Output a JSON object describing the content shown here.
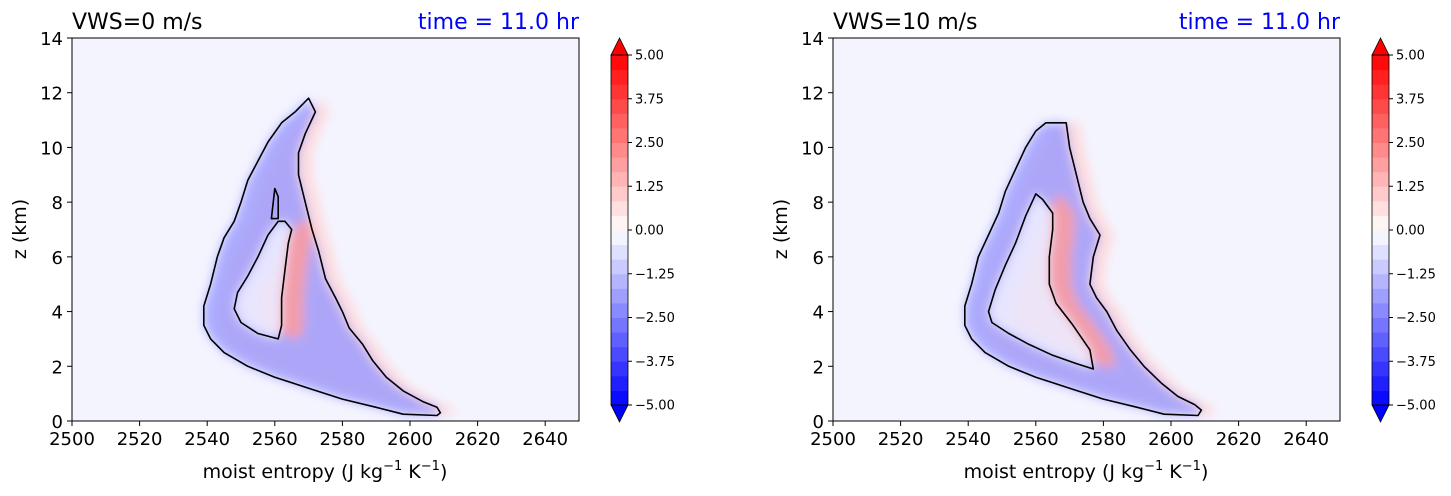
{
  "chart_data": [
    {
      "type": "heatmap",
      "title": "VWS=0 m/s",
      "title_right": "time = 11.0 hr",
      "title_right_color": "#0000ff",
      "xlabel": "moist entropy (J kg",
      "xlabel_sup1": "−1",
      "xlabel_mid": " K",
      "xlabel_sup2": "−1",
      "xlabel_end": ")",
      "ylabel": "z (km)",
      "xlim": [
        2500,
        2650
      ],
      "ylim": [
        0,
        14
      ],
      "xticks": [
        "2500",
        "2520",
        "2540",
        "2560",
        "2580",
        "2600",
        "2620",
        "2640"
      ],
      "yticks": [
        "0",
        "2",
        "4",
        "6",
        "8",
        "10",
        "12",
        "14"
      ],
      "colorbar": {
        "ticks": [
          "5.00",
          "3.75",
          "2.50",
          "1.25",
          "0.00",
          "−1.25",
          "−2.50",
          "−3.75",
          "−5.00"
        ],
        "range": [
          -5,
          5
        ],
        "cmap": "bwr",
        "extend": "both"
      },
      "contours": {
        "outer_left": [
          [
            2608,
            0.2
          ],
          [
            2598,
            0.25
          ],
          [
            2590,
            0.5
          ],
          [
            2580,
            0.8
          ],
          [
            2570,
            1.2
          ],
          [
            2560,
            1.6
          ],
          [
            2552,
            2.0
          ],
          [
            2545,
            2.5
          ],
          [
            2541,
            3.0
          ],
          [
            2539,
            3.5
          ],
          [
            2539,
            4.2
          ],
          [
            2541,
            5.0
          ],
          [
            2543,
            6.0
          ],
          [
            2545,
            6.7
          ],
          [
            2548,
            7.3
          ],
          [
            2550,
            8.0
          ],
          [
            2552,
            8.8
          ],
          [
            2555,
            9.5
          ],
          [
            2558,
            10.2
          ],
          [
            2562,
            10.9
          ],
          [
            2566,
            11.3
          ],
          [
            2570,
            11.8
          ],
          [
            2572,
            11.3
          ],
          [
            2569,
            10.5
          ],
          [
            2567,
            9.8
          ],
          [
            2567,
            9.0
          ],
          [
            2569,
            8.0
          ],
          [
            2571,
            7.0
          ],
          [
            2573,
            6.2
          ],
          [
            2575,
            5.2
          ],
          [
            2578,
            4.5
          ],
          [
            2580,
            4.0
          ],
          [
            2582,
            3.4
          ],
          [
            2586,
            2.8
          ],
          [
            2589,
            2.2
          ],
          [
            2593,
            1.6
          ],
          [
            2598,
            1.1
          ],
          [
            2604,
            0.7
          ],
          [
            2608,
            0.5
          ],
          [
            2609,
            0.3
          ],
          [
            2608,
            0.2
          ]
        ],
        "inner": [
          [
            2561,
            7.3
          ],
          [
            2558,
            6.8
          ],
          [
            2555,
            6.0
          ],
          [
            2552,
            5.3
          ],
          [
            2549,
            4.7
          ],
          [
            2548,
            4.1
          ],
          [
            2550,
            3.6
          ],
          [
            2555,
            3.2
          ],
          [
            2561,
            3.0
          ],
          [
            2562,
            3.5
          ],
          [
            2562,
            4.5
          ],
          [
            2563,
            5.5
          ],
          [
            2564,
            6.5
          ],
          [
            2565,
            7.0
          ],
          [
            2563,
            7.3
          ],
          [
            2561,
            7.3
          ]
        ],
        "spike": [
          [
            2559,
            7.4
          ],
          [
            2560,
            8.5
          ],
          [
            2561,
            8.2
          ],
          [
            2561,
            7.4
          ],
          [
            2559,
            7.4
          ]
        ]
      }
    },
    {
      "type": "heatmap",
      "title": "VWS=10 m/s",
      "title_right": "time = 11.0 hr",
      "title_right_color": "#0000ff",
      "xlabel": "moist entropy (J kg",
      "xlabel_sup1": "−1",
      "xlabel_mid": " K",
      "xlabel_sup2": "−1",
      "xlabel_end": ")",
      "ylabel": "z (km)",
      "xlim": [
        2500,
        2650
      ],
      "ylim": [
        0,
        14
      ],
      "xticks": [
        "2500",
        "2520",
        "2540",
        "2560",
        "2580",
        "2600",
        "2620",
        "2640"
      ],
      "yticks": [
        "0",
        "2",
        "4",
        "6",
        "8",
        "10",
        "12",
        "14"
      ],
      "colorbar": {
        "ticks": [
          "5.00",
          "3.75",
          "2.50",
          "1.25",
          "0.00",
          "−1.25",
          "−2.50",
          "−3.75",
          "−5.00"
        ],
        "range": [
          -5,
          5
        ],
        "cmap": "bwr",
        "extend": "both"
      },
      "contours": {
        "outer_left": [
          [
            2608,
            0.2
          ],
          [
            2598,
            0.25
          ],
          [
            2590,
            0.5
          ],
          [
            2580,
            0.8
          ],
          [
            2570,
            1.2
          ],
          [
            2560,
            1.6
          ],
          [
            2552,
            2.0
          ],
          [
            2545,
            2.5
          ],
          [
            2541,
            3.0
          ],
          [
            2539,
            3.5
          ],
          [
            2539,
            4.2
          ],
          [
            2541,
            5.0
          ],
          [
            2543,
            6.0
          ],
          [
            2546,
            6.8
          ],
          [
            2549,
            7.6
          ],
          [
            2551,
            8.4
          ],
          [
            2554,
            9.2
          ],
          [
            2557,
            10.0
          ],
          [
            2560,
            10.6
          ],
          [
            2563,
            10.9
          ],
          [
            2569,
            10.9
          ],
          [
            2570,
            10.0
          ],
          [
            2572,
            9.0
          ],
          [
            2574,
            8.0
          ],
          [
            2576,
            7.4
          ],
          [
            2579,
            6.8
          ],
          [
            2577,
            6.0
          ],
          [
            2576,
            5.0
          ],
          [
            2578,
            4.5
          ],
          [
            2581,
            4.0
          ],
          [
            2584,
            3.3
          ],
          [
            2588,
            2.6
          ],
          [
            2592,
            2.0
          ],
          [
            2597,
            1.4
          ],
          [
            2602,
            0.9
          ],
          [
            2607,
            0.6
          ],
          [
            2609,
            0.4
          ],
          [
            2608,
            0.2
          ]
        ],
        "inner": [
          [
            2560,
            8.3
          ],
          [
            2557,
            7.5
          ],
          [
            2554,
            6.5
          ],
          [
            2551,
            5.7
          ],
          [
            2548,
            4.8
          ],
          [
            2546,
            4.0
          ],
          [
            2547,
            3.6
          ],
          [
            2552,
            3.2
          ],
          [
            2558,
            2.8
          ],
          [
            2565,
            2.4
          ],
          [
            2572,
            2.1
          ],
          [
            2577,
            1.9
          ],
          [
            2576,
            2.6
          ],
          [
            2571,
            3.5
          ],
          [
            2566,
            4.3
          ],
          [
            2564,
            5.0
          ],
          [
            2564,
            6.0
          ],
          [
            2565,
            7.0
          ],
          [
            2565,
            7.6
          ],
          [
            2562,
            8.1
          ],
          [
            2560,
            8.3
          ]
        ],
        "spike": []
      }
    }
  ]
}
